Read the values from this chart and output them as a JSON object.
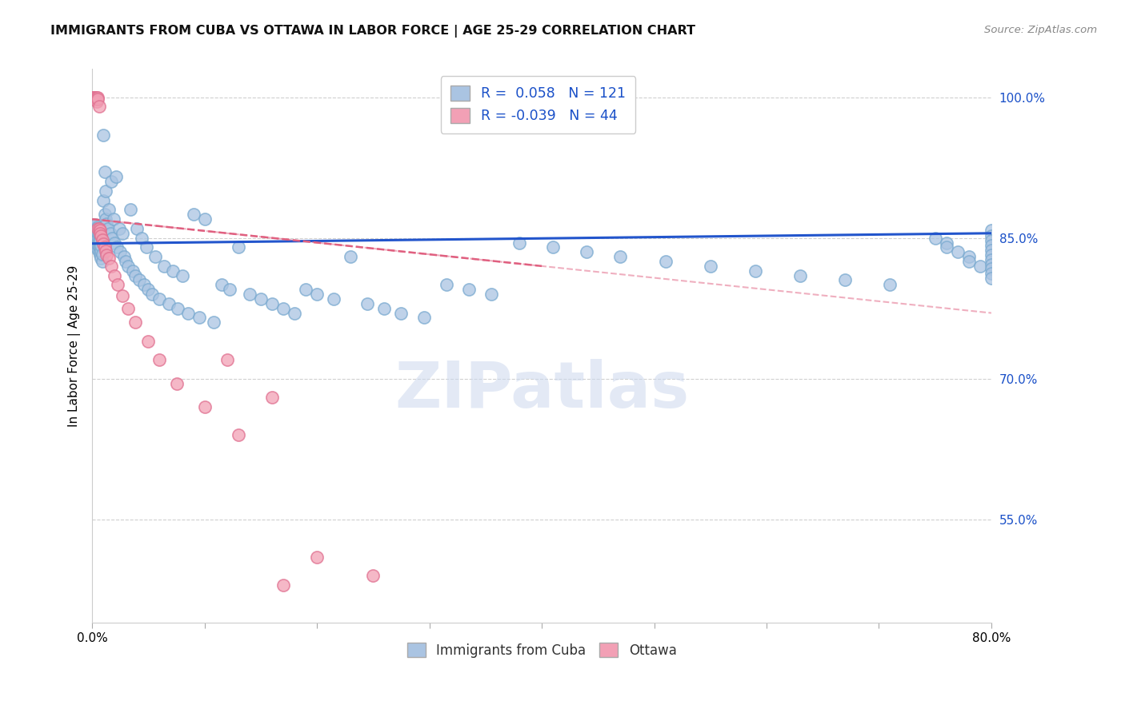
{
  "title": "IMMIGRANTS FROM CUBA VS OTTAWA IN LABOR FORCE | AGE 25-29 CORRELATION CHART",
  "source": "Source: ZipAtlas.com",
  "ylabel": "In Labor Force | Age 25-29",
  "x_min": 0.0,
  "x_max": 0.8,
  "y_min": 0.44,
  "y_max": 1.03,
  "x_ticks": [
    0.0,
    0.1,
    0.2,
    0.3,
    0.4,
    0.5,
    0.6,
    0.7,
    0.8
  ],
  "x_tick_labels": [
    "0.0%",
    "",
    "",
    "",
    "",
    "",
    "",
    "",
    "80.0%"
  ],
  "y_ticks_right": [
    0.55,
    0.7,
    0.85,
    1.0
  ],
  "y_tick_labels_right": [
    "55.0%",
    "70.0%",
    "85.0%",
    "100.0%"
  ],
  "legend_r_blue": "0.058",
  "legend_n_blue": "121",
  "legend_r_pink": "-0.039",
  "legend_n_pink": "44",
  "blue_color": "#aac4e2",
  "pink_color": "#f2a0b5",
  "blue_edge_color": "#7aaad0",
  "pink_edge_color": "#e07090",
  "blue_line_color": "#2255cc",
  "pink_line_color": "#e06080",
  "r_value_color": "#1a50c8",
  "watermark": "ZIPatlas",
  "legend_label_blue": "Immigrants from Cuba",
  "legend_label_pink": "Ottawa",
  "blue_x": [
    0.001,
    0.001,
    0.002,
    0.002,
    0.002,
    0.003,
    0.003,
    0.003,
    0.003,
    0.004,
    0.004,
    0.004,
    0.004,
    0.005,
    0.005,
    0.005,
    0.005,
    0.005,
    0.006,
    0.006,
    0.006,
    0.006,
    0.007,
    0.007,
    0.007,
    0.008,
    0.008,
    0.008,
    0.009,
    0.009,
    0.01,
    0.01,
    0.011,
    0.011,
    0.012,
    0.012,
    0.013,
    0.014,
    0.015,
    0.016,
    0.017,
    0.018,
    0.019,
    0.02,
    0.021,
    0.022,
    0.024,
    0.025,
    0.027,
    0.028,
    0.03,
    0.032,
    0.034,
    0.036,
    0.038,
    0.04,
    0.042,
    0.044,
    0.046,
    0.048,
    0.05,
    0.053,
    0.056,
    0.06,
    0.064,
    0.068,
    0.072,
    0.076,
    0.08,
    0.085,
    0.09,
    0.095,
    0.1,
    0.108,
    0.115,
    0.122,
    0.13,
    0.14,
    0.15,
    0.16,
    0.17,
    0.18,
    0.19,
    0.2,
    0.215,
    0.23,
    0.245,
    0.26,
    0.275,
    0.295,
    0.315,
    0.335,
    0.355,
    0.38,
    0.41,
    0.44,
    0.47,
    0.51,
    0.55,
    0.59,
    0.63,
    0.67,
    0.71,
    0.75,
    0.76,
    0.76,
    0.77,
    0.78,
    0.78,
    0.79,
    0.8,
    0.8,
    0.8,
    0.8,
    0.8,
    0.8,
    0.8,
    0.8,
    0.8,
    0.8,
    0.8
  ],
  "blue_y": [
    0.855,
    0.862,
    0.848,
    0.855,
    0.86,
    0.845,
    0.852,
    0.858,
    0.864,
    0.84,
    0.847,
    0.854,
    0.86,
    0.838,
    0.843,
    0.85,
    0.856,
    0.862,
    0.835,
    0.841,
    0.848,
    0.854,
    0.832,
    0.84,
    0.847,
    0.828,
    0.836,
    0.842,
    0.825,
    0.833,
    0.96,
    0.89,
    0.92,
    0.875,
    0.87,
    0.9,
    0.865,
    0.86,
    0.88,
    0.855,
    0.91,
    0.85,
    0.87,
    0.845,
    0.915,
    0.84,
    0.86,
    0.835,
    0.855,
    0.83,
    0.825,
    0.82,
    0.88,
    0.815,
    0.81,
    0.86,
    0.805,
    0.85,
    0.8,
    0.84,
    0.795,
    0.79,
    0.83,
    0.785,
    0.82,
    0.78,
    0.815,
    0.775,
    0.81,
    0.77,
    0.875,
    0.765,
    0.87,
    0.76,
    0.8,
    0.795,
    0.84,
    0.79,
    0.785,
    0.78,
    0.775,
    0.77,
    0.795,
    0.79,
    0.785,
    0.83,
    0.78,
    0.775,
    0.77,
    0.765,
    0.8,
    0.795,
    0.79,
    0.845,
    0.84,
    0.835,
    0.83,
    0.825,
    0.82,
    0.815,
    0.81,
    0.805,
    0.8,
    0.85,
    0.845,
    0.84,
    0.835,
    0.83,
    0.825,
    0.82,
    0.858,
    0.852,
    0.847,
    0.842,
    0.837,
    0.832,
    0.827,
    0.822,
    0.817,
    0.812,
    0.807
  ],
  "pink_x": [
    0.001,
    0.001,
    0.001,
    0.002,
    0.002,
    0.002,
    0.002,
    0.002,
    0.003,
    0.003,
    0.003,
    0.004,
    0.004,
    0.004,
    0.005,
    0.005,
    0.005,
    0.006,
    0.006,
    0.007,
    0.007,
    0.008,
    0.009,
    0.01,
    0.011,
    0.012,
    0.013,
    0.015,
    0.017,
    0.02,
    0.023,
    0.027,
    0.032,
    0.038,
    0.05,
    0.06,
    0.075,
    0.1,
    0.13,
    0.17,
    0.12,
    0.16,
    0.2,
    0.25
  ],
  "pink_y": [
    1.0,
    1.0,
    1.0,
    1.0,
    1.0,
    1.0,
    1.0,
    0.998,
    1.0,
    1.0,
    0.998,
    1.0,
    0.998,
    0.995,
    1.0,
    0.998,
    0.86,
    0.99,
    0.86,
    0.858,
    0.855,
    0.852,
    0.848,
    0.844,
    0.84,
    0.836,
    0.832,
    0.828,
    0.82,
    0.81,
    0.8,
    0.788,
    0.775,
    0.76,
    0.74,
    0.72,
    0.695,
    0.67,
    0.64,
    0.48,
    0.72,
    0.68,
    0.51,
    0.49
  ],
  "blue_trend_x": [
    0.0,
    0.8
  ],
  "blue_trend_y": [
    0.844,
    0.855
  ],
  "pink_trend_x": [
    0.0,
    0.4
  ],
  "pink_trend_y": [
    0.87,
    0.82
  ],
  "grid_color": "#d0d0d0",
  "background_color": "#ffffff"
}
